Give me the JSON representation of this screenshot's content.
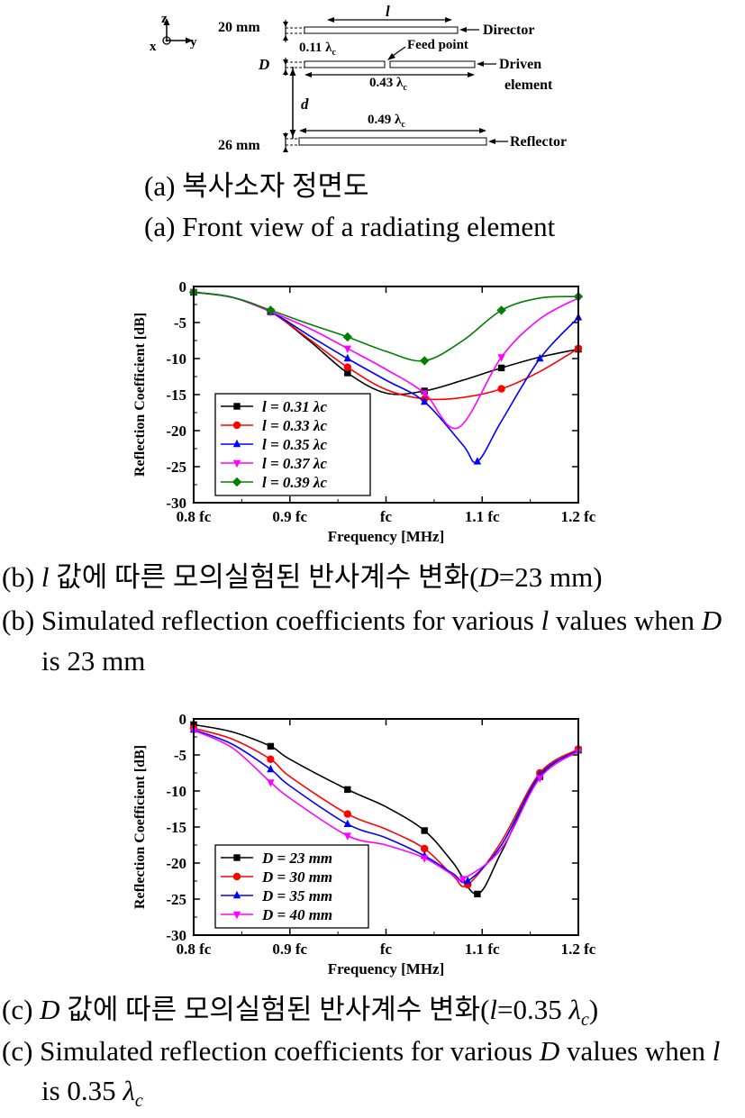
{
  "figure_a": {
    "axes": {
      "z": "z",
      "x": "x",
      "y": "y"
    },
    "labels": {
      "director_spacing": "20 mm",
      "D": "D",
      "d": "d",
      "reflector_spacing": "26 mm",
      "l": "l",
      "gap": "0.11 λ",
      "driven_len": "0.43 λ",
      "reflector_len": "0.49 λ",
      "sub_c": "c",
      "feed_point": "Feed point",
      "director": "Director",
      "driven": "Driven",
      "element": "element",
      "reflector": "Reflector"
    },
    "caption_ko": "(a) 복사소자 정면도",
    "caption_en": "(a) Front view of a radiating element"
  },
  "chart_data": [
    {
      "type": "line",
      "xlabel": "Frequency [MHz]",
      "ylabel": "Reflection Coefficient [dB]",
      "x_ticks": [
        "0.8 fc",
        "0.9 fc",
        "fc",
        "1.1 fc",
        "1.2 fc"
      ],
      "x_tick_values": [
        0.8,
        0.9,
        1.0,
        1.1,
        1.2
      ],
      "ylim": [
        -30,
        0
      ],
      "y_ticks": [
        0,
        -5,
        -10,
        -15,
        -20,
        -25,
        -30
      ],
      "legend_position": "bottom-left",
      "series": [
        {
          "name": "l = 0.31 λc",
          "color": "#000000",
          "marker": "square",
          "x": [
            0.8,
            0.84,
            0.88,
            0.92,
            0.96,
            1.0,
            1.04,
            1.08,
            1.12,
            1.16,
            1.2
          ],
          "y": [
            -0.8,
            -1.5,
            -3.5,
            -7.5,
            -12.0,
            -14.8,
            -14.5,
            -13.0,
            -11.3,
            -9.8,
            -8.7
          ]
        },
        {
          "name": "l = 0.33 λc",
          "color": "#ff0000",
          "marker": "circle",
          "x": [
            0.8,
            0.84,
            0.88,
            0.92,
            0.96,
            1.0,
            1.04,
            1.08,
            1.12,
            1.16,
            1.2
          ],
          "y": [
            -0.8,
            -1.5,
            -3.5,
            -7.3,
            -11.2,
            -14.3,
            -15.6,
            -15.4,
            -14.2,
            -11.8,
            -8.6
          ]
        },
        {
          "name": "l = 0.35 λc",
          "color": "#0000ff",
          "marker": "triangle-up",
          "x": [
            0.8,
            0.84,
            0.88,
            0.92,
            0.96,
            1.0,
            1.04,
            1.08,
            1.095,
            1.12,
            1.16,
            1.2
          ],
          "y": [
            -0.8,
            -1.5,
            -3.5,
            -6.8,
            -10.0,
            -13.0,
            -16.0,
            -22.0,
            -24.3,
            -18.7,
            -10.0,
            -4.3
          ]
        },
        {
          "name": "l = 0.37 λc",
          "color": "#ff00ff",
          "marker": "triangle-down",
          "x": [
            0.8,
            0.84,
            0.88,
            0.92,
            0.96,
            1.0,
            1.04,
            1.075,
            1.12,
            1.16,
            1.2
          ],
          "y": [
            -0.8,
            -1.5,
            -3.5,
            -5.8,
            -8.6,
            -11.5,
            -14.8,
            -19.6,
            -9.8,
            -4.5,
            -1.6
          ]
        },
        {
          "name": "l = 0.39 λc",
          "color": "#008000",
          "marker": "diamond",
          "x": [
            0.8,
            0.84,
            0.88,
            0.92,
            0.96,
            1.0,
            1.04,
            1.08,
            1.12,
            1.16,
            1.2
          ],
          "y": [
            -0.8,
            -1.5,
            -3.3,
            -5.2,
            -7.0,
            -9.0,
            -10.3,
            -7.5,
            -3.3,
            -1.6,
            -1.4
          ]
        }
      ]
    },
    {
      "type": "line",
      "xlabel": "Frequency [MHz]",
      "ylabel": "Reflection Coefficient [dB]",
      "x_ticks": [
        "0.8 fc",
        "0.9 fc",
        "fc",
        "1.1 fc",
        "1.2 fc"
      ],
      "x_tick_values": [
        0.8,
        0.9,
        1.0,
        1.1,
        1.2
      ],
      "ylim": [
        -30,
        0
      ],
      "y_ticks": [
        0,
        -5,
        -10,
        -15,
        -20,
        -25,
        -30
      ],
      "legend_position": "bottom-left",
      "series": [
        {
          "name": "D = 23 mm",
          "color": "#000000",
          "marker": "square",
          "x": [
            0.8,
            0.84,
            0.88,
            0.9,
            0.96,
            1.0,
            1.04,
            1.07,
            1.095,
            1.12,
            1.16,
            1.2
          ],
          "y": [
            -0.8,
            -1.8,
            -3.8,
            -5.6,
            -9.8,
            -12.2,
            -15.5,
            -20.0,
            -24.3,
            -18.5,
            -8.0,
            -4.3
          ]
        },
        {
          "name": "D = 30 mm",
          "color": "#ff0000",
          "marker": "circle",
          "x": [
            0.8,
            0.84,
            0.88,
            0.9,
            0.96,
            1.0,
            1.04,
            1.07,
            1.085,
            1.12,
            1.16,
            1.2
          ],
          "y": [
            -1.3,
            -2.8,
            -5.6,
            -8.0,
            -13.2,
            -15.3,
            -18.0,
            -21.8,
            -23.0,
            -17.0,
            -7.5,
            -4.2
          ]
        },
        {
          "name": "D = 35 mm",
          "color": "#0000ff",
          "marker": "triangle-up",
          "x": [
            0.8,
            0.84,
            0.88,
            0.9,
            0.96,
            1.0,
            1.04,
            1.07,
            1.085,
            1.12,
            1.16,
            1.2
          ],
          "y": [
            -1.5,
            -3.5,
            -7.0,
            -9.3,
            -14.6,
            -16.5,
            -19.0,
            -21.5,
            -22.5,
            -17.5,
            -7.8,
            -4.4
          ]
        },
        {
          "name": "D = 40 mm",
          "color": "#ff00ff",
          "marker": "triangle-down",
          "x": [
            0.8,
            0.84,
            0.88,
            0.9,
            0.96,
            1.0,
            1.04,
            1.07,
            1.08,
            1.12,
            1.16,
            1.2
          ],
          "y": [
            -1.6,
            -4.0,
            -8.8,
            -11.0,
            -16.2,
            -17.5,
            -19.3,
            -21.7,
            -22.2,
            -18.0,
            -8.2,
            -4.5
          ]
        }
      ]
    }
  ],
  "caption_b_ko": {
    "pre": "(b) ",
    "l": "l",
    "mid": " 값에 따른 모의실험된 반사계수 변화(",
    "D": "D",
    "post": "=23 mm)"
  },
  "caption_b_en1": {
    "pre": "(b) Simulated reflection coefficients for various ",
    "l": "l",
    "mid": " values when ",
    "D": "D"
  },
  "caption_b_en2": "is 23 mm",
  "caption_c_ko": {
    "pre": "(c) ",
    "D": "D",
    "mid": " 값에 따른 모의실험된 반사계수 변화(",
    "l": "l",
    "val": "=0.35 ",
    "lam": "λ",
    "sub": "c",
    "post": ")"
  },
  "caption_c_en1": {
    "pre": "(c) Simulated reflection coefficients for various ",
    "D": "D",
    "mid": " values when ",
    "l": "l"
  },
  "caption_c_en2": {
    "pre": "is 0.35 ",
    "lam": "λ",
    "sub": "c"
  }
}
